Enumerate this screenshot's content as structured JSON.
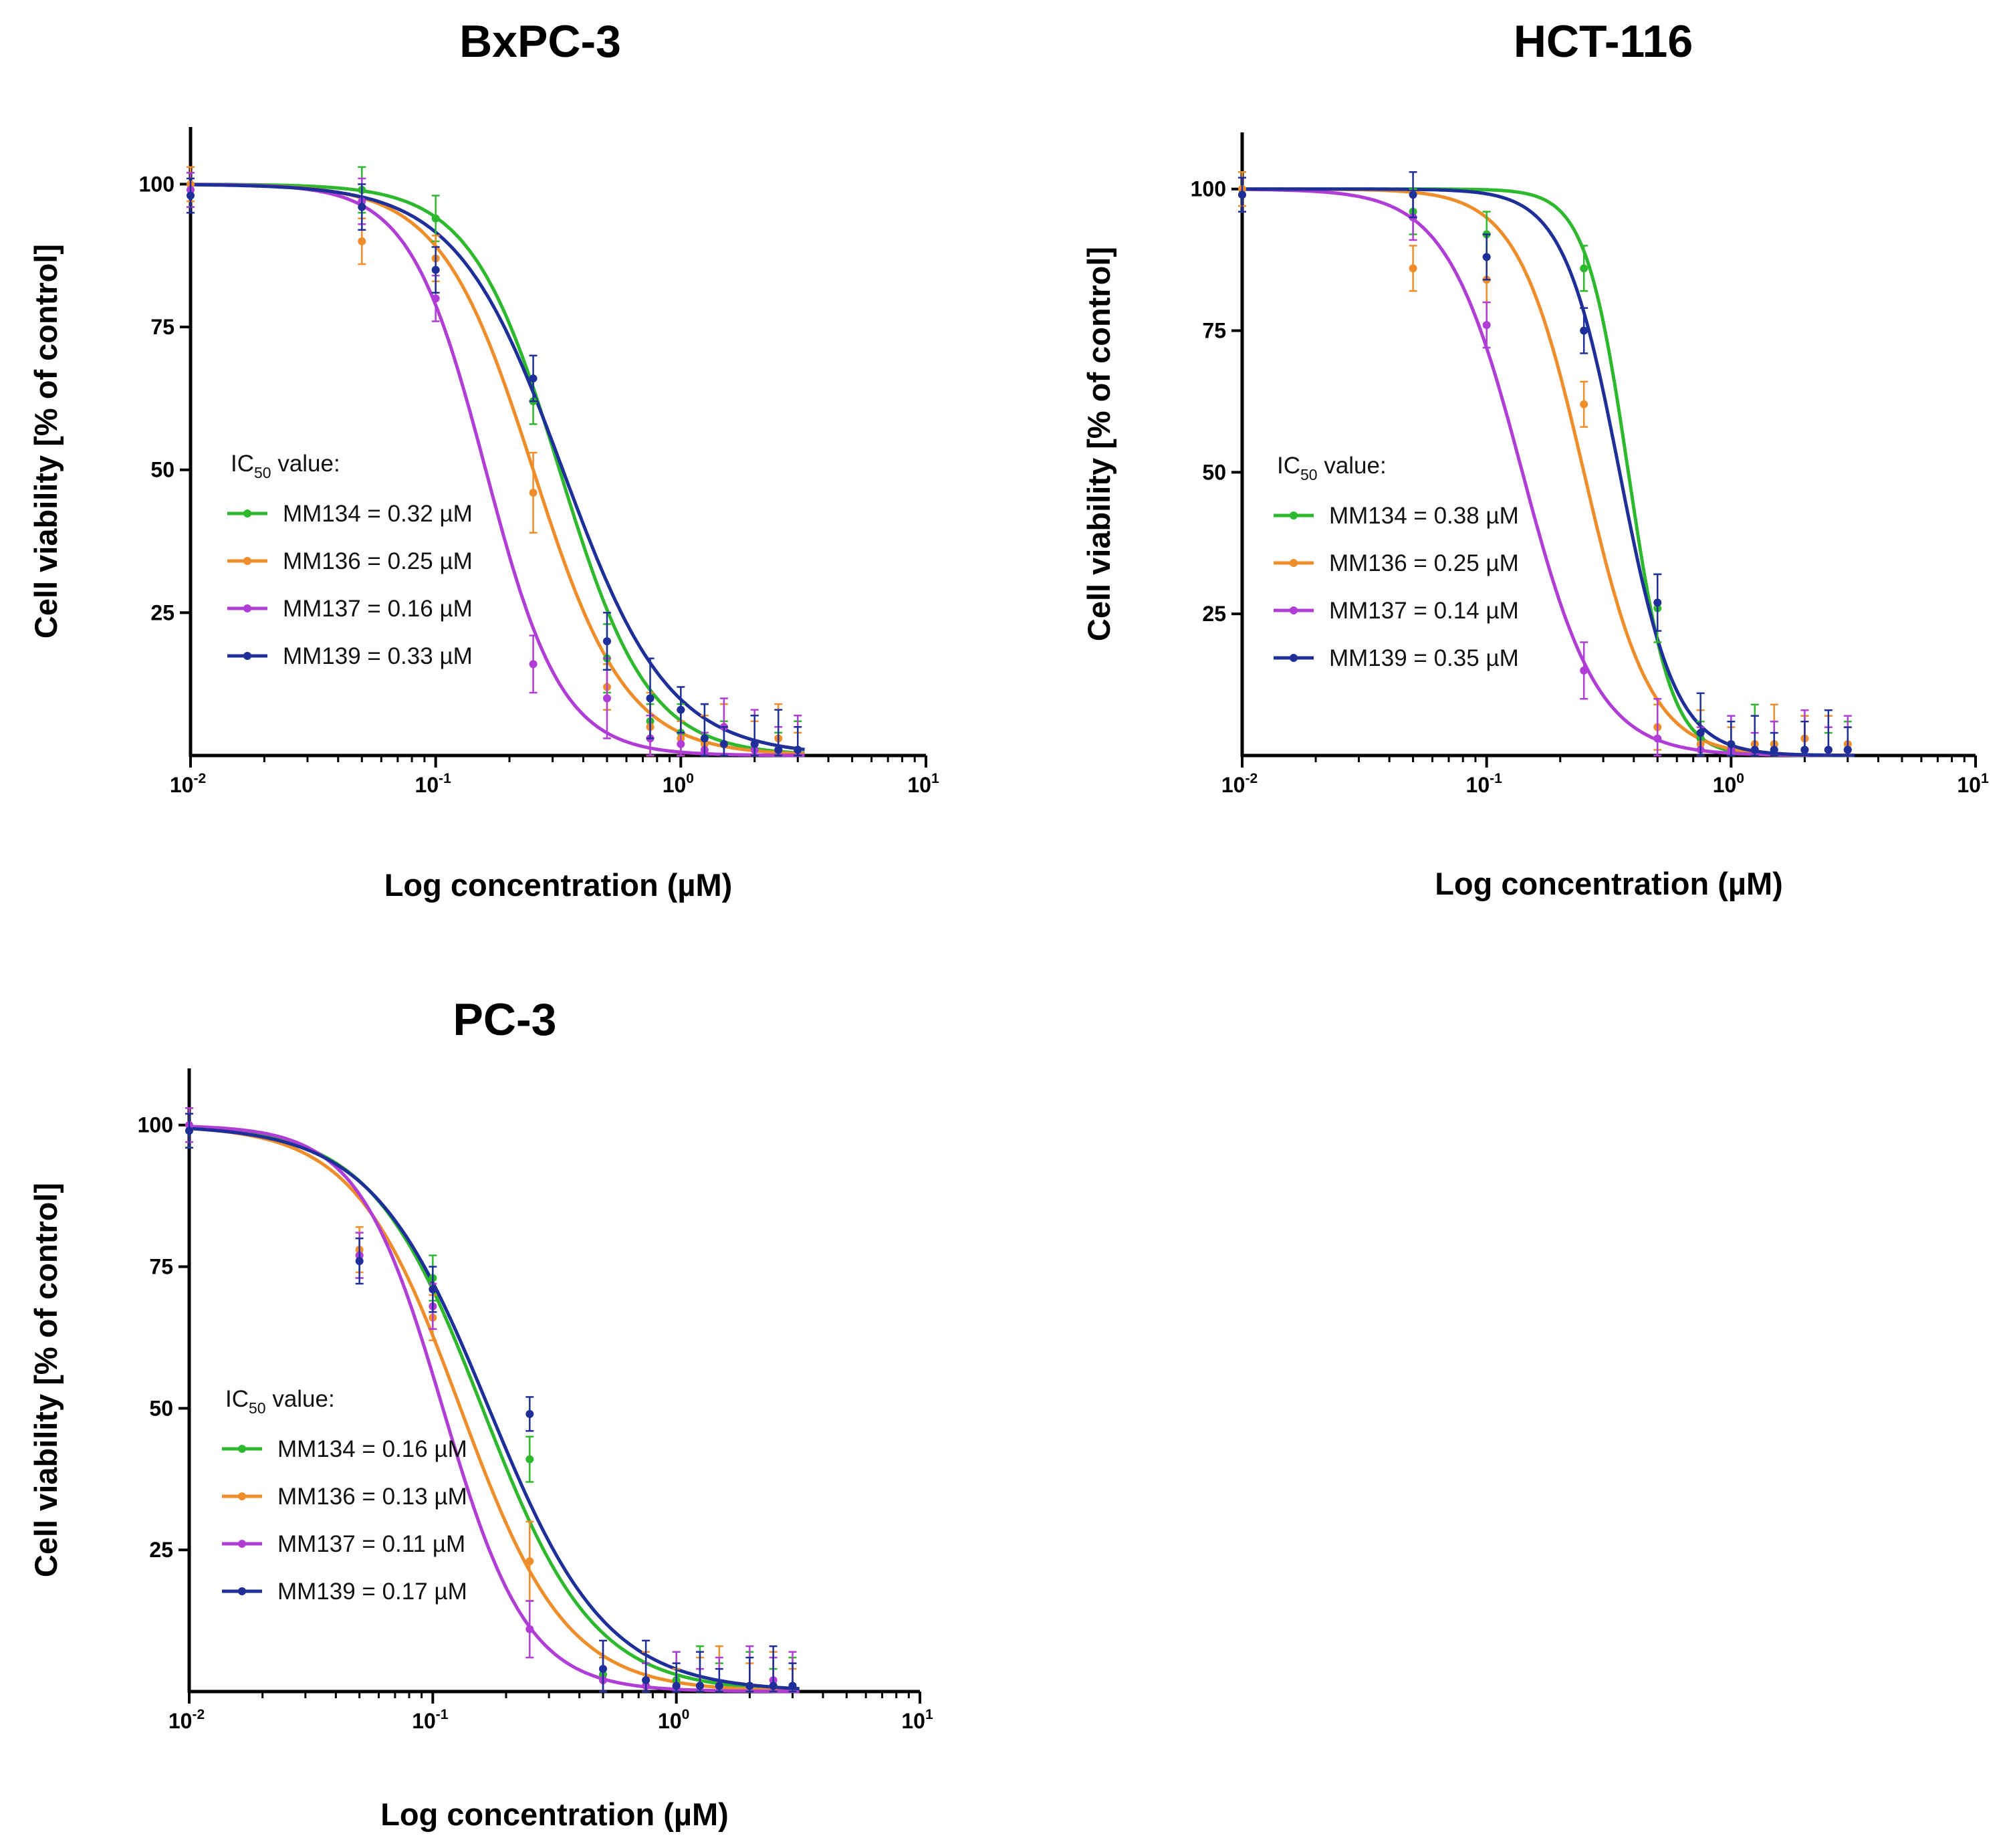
{
  "chart_data": [
    {
      "type": "line",
      "title": "BxPC-3",
      "xlabel": "Log concentration (µM)",
      "ylabel": "Cell viability [% of control]",
      "xscale": "log",
      "xlim": [
        0.01,
        10
      ],
      "ylim": [
        0,
        110
      ],
      "x_ticks": [
        {
          "base": "10",
          "exp": "-2"
        },
        {
          "base": "10",
          "exp": "-1"
        },
        {
          "base": "10",
          "exp": "0"
        },
        {
          "base": "10",
          "exp": "1"
        }
      ],
      "y_ticks": [
        "100",
        "75",
        "50",
        "25"
      ],
      "legend_title": {
        "main": "IC",
        "sub": "50",
        "rest": " value:"
      },
      "series": [
        {
          "name": "MM134",
          "label": "MM134 = 0.32 µM",
          "color": "#2db82d",
          "ic50": 0.32,
          "hill": 2.4,
          "x": [
            0.01,
            0.05,
            0.1,
            0.25,
            0.5,
            0.75,
            1.0,
            1.25,
            1.5,
            2.0,
            2.5,
            3.0
          ],
          "y": [
            99,
            99,
            94,
            62,
            17,
            6,
            4,
            2,
            2,
            1,
            1,
            1
          ]
        },
        {
          "name": "MM136",
          "label": "MM136 = 0.25 µM",
          "color": "#ee8d2a",
          "ic50": 0.25,
          "hill": 2.3,
          "x": [
            0.01,
            0.05,
            0.1,
            0.25,
            0.5,
            0.75,
            1.0,
            1.25,
            1.5,
            2.0,
            2.5,
            3.0
          ],
          "y": [
            100,
            90,
            87,
            46,
            12,
            5,
            3,
            2,
            2,
            2,
            3,
            1
          ]
        },
        {
          "name": "MM137",
          "label": "MM137 = 0.16 µM",
          "color": "#b03dd6",
          "ic50": 0.16,
          "hill": 2.8,
          "x": [
            0.01,
            0.05,
            0.1,
            0.25,
            0.5,
            0.75,
            1.0,
            1.25,
            1.5,
            2.0,
            2.5,
            3.0
          ],
          "y": [
            99,
            97,
            80,
            16,
            10,
            3,
            2,
            1,
            5,
            1,
            1,
            1
          ]
        },
        {
          "name": "MM139",
          "label": "MM139 = 0.33 µM",
          "color": "#1f2f9a",
          "ic50": 0.33,
          "hill": 2.0,
          "x": [
            0.01,
            0.05,
            0.1,
            0.25,
            0.5,
            0.75,
            1.0,
            1.25,
            1.5,
            2.0,
            2.5,
            3.0
          ],
          "y": [
            98,
            96,
            85,
            66,
            20,
            10,
            8,
            3,
            2,
            2,
            1,
            1
          ]
        }
      ]
    },
    {
      "type": "line",
      "title": "HCT-116",
      "xlabel": "Log concentration (µM)",
      "ylabel": "Cell viability [% of control]",
      "xscale": "log",
      "xlim": [
        0.01,
        10
      ],
      "ylim": [
        0,
        110
      ],
      "x_ticks": [
        {
          "base": "10",
          "exp": "-2"
        },
        {
          "base": "10",
          "exp": "-1"
        },
        {
          "base": "10",
          "exp": "0"
        },
        {
          "base": "10",
          "exp": "1"
        }
      ],
      "y_ticks": [
        "100",
        "75",
        "50",
        "25"
      ],
      "legend_title": {
        "main": "IC",
        "sub": "50",
        "rest": " value:"
      },
      "series": [
        {
          "name": "MM134",
          "label": "MM134 = 0.38 µM",
          "color": "#2db82d",
          "ic50": 0.38,
          "hill": 5.0,
          "x": [
            0.01,
            0.05,
            0.1,
            0.25,
            0.5,
            0.75,
            1.0,
            1.25,
            1.5,
            2.0,
            2.5,
            3.0
          ],
          "y": [
            100,
            96,
            92,
            86,
            26,
            3,
            2,
            2,
            2,
            1,
            1,
            1
          ]
        },
        {
          "name": "MM136",
          "label": "MM136 = 0.25 µM",
          "color": "#ee8d2a",
          "ic50": 0.25,
          "hill": 3.2,
          "x": [
            0.01,
            0.05,
            0.1,
            0.25,
            0.5,
            0.75,
            1.0,
            1.25,
            1.5,
            2.0,
            2.5,
            3.0
          ],
          "y": [
            100,
            86,
            84,
            62,
            5,
            2,
            2,
            2,
            2,
            3,
            1,
            2
          ]
        },
        {
          "name": "MM137",
          "label": "MM137 = 0.14 µM",
          "color": "#b03dd6",
          "ic50": 0.14,
          "hill": 2.8,
          "x": [
            0.01,
            0.05,
            0.1,
            0.25,
            0.5,
            0.75,
            1.0,
            1.25,
            1.5,
            2.0,
            2.5,
            3.0
          ],
          "y": [
            99,
            95,
            76,
            15,
            3,
            1,
            1,
            1,
            1,
            1,
            1,
            1
          ]
        },
        {
          "name": "MM139",
          "label": "MM139 = 0.35 µM",
          "color": "#1f2f9a",
          "ic50": 0.35,
          "hill": 3.8,
          "x": [
            0.01,
            0.05,
            0.1,
            0.25,
            0.5,
            0.75,
            1.0,
            1.25,
            1.5,
            2.0,
            2.5,
            3.0
          ],
          "y": [
            99,
            99,
            88,
            75,
            27,
            4,
            2,
            1,
            1,
            1,
            1,
            1
          ]
        }
      ]
    },
    {
      "type": "line",
      "title": "PC-3",
      "xlabel": "Log concentration (µM)",
      "ylabel": "Cell viability [% of control]",
      "xscale": "log",
      "xlim": [
        0.01,
        10
      ],
      "ylim": [
        0,
        110
      ],
      "x_ticks": [
        {
          "base": "10",
          "exp": "-2"
        },
        {
          "base": "10",
          "exp": "-1"
        },
        {
          "base": "10",
          "exp": "0"
        },
        {
          "base": "10",
          "exp": "1"
        }
      ],
      "y_ticks": [
        "100",
        "75",
        "50",
        "25"
      ],
      "legend_title": {
        "main": "IC",
        "sub": "50",
        "rest": " value:"
      },
      "series": [
        {
          "name": "MM134",
          "label": "MM134 = 0.16 µM",
          "color": "#2db82d",
          "ic50": 0.16,
          "hill": 1.9,
          "x": [
            0.01,
            0.05,
            0.1,
            0.25,
            0.5,
            0.75,
            1.0,
            1.25,
            1.5,
            2.0,
            2.5,
            3.0
          ],
          "y": [
            99,
            77,
            73,
            41,
            3,
            2,
            2,
            1,
            1,
            1,
            1,
            1
          ]
        },
        {
          "name": "MM136",
          "label": "MM136 = 0.13 µM",
          "color": "#ee8d2a",
          "ic50": 0.13,
          "hill": 2.0,
          "x": [
            0.01,
            0.05,
            0.1,
            0.25,
            0.5,
            0.75,
            1.0,
            1.25,
            1.5,
            2.0,
            2.5,
            3.0
          ],
          "y": [
            100,
            78,
            66,
            23,
            2,
            1,
            1,
            1,
            1,
            1,
            1,
            1
          ]
        },
        {
          "name": "MM137",
          "label": "MM137 = 0.11 µM",
          "color": "#b03dd6",
          "ic50": 0.11,
          "hill": 2.5,
          "x": [
            0.01,
            0.05,
            0.1,
            0.25,
            0.5,
            0.75,
            1.0,
            1.25,
            1.5,
            2.0,
            2.5,
            3.0
          ],
          "y": [
            100,
            77,
            68,
            11,
            2,
            1,
            1,
            1,
            1,
            1,
            2,
            1
          ]
        },
        {
          "name": "MM139",
          "label": "MM139 = 0.17 µM",
          "color": "#1f2f9a",
          "ic50": 0.17,
          "hill": 1.8,
          "x": [
            0.01,
            0.05,
            0.1,
            0.25,
            0.5,
            0.75,
            1.0,
            1.25,
            1.5,
            2.0,
            2.5,
            3.0
          ],
          "y": [
            99,
            76,
            71,
            49,
            4,
            2,
            1,
            1,
            1,
            1,
            1,
            1
          ]
        }
      ]
    }
  ]
}
